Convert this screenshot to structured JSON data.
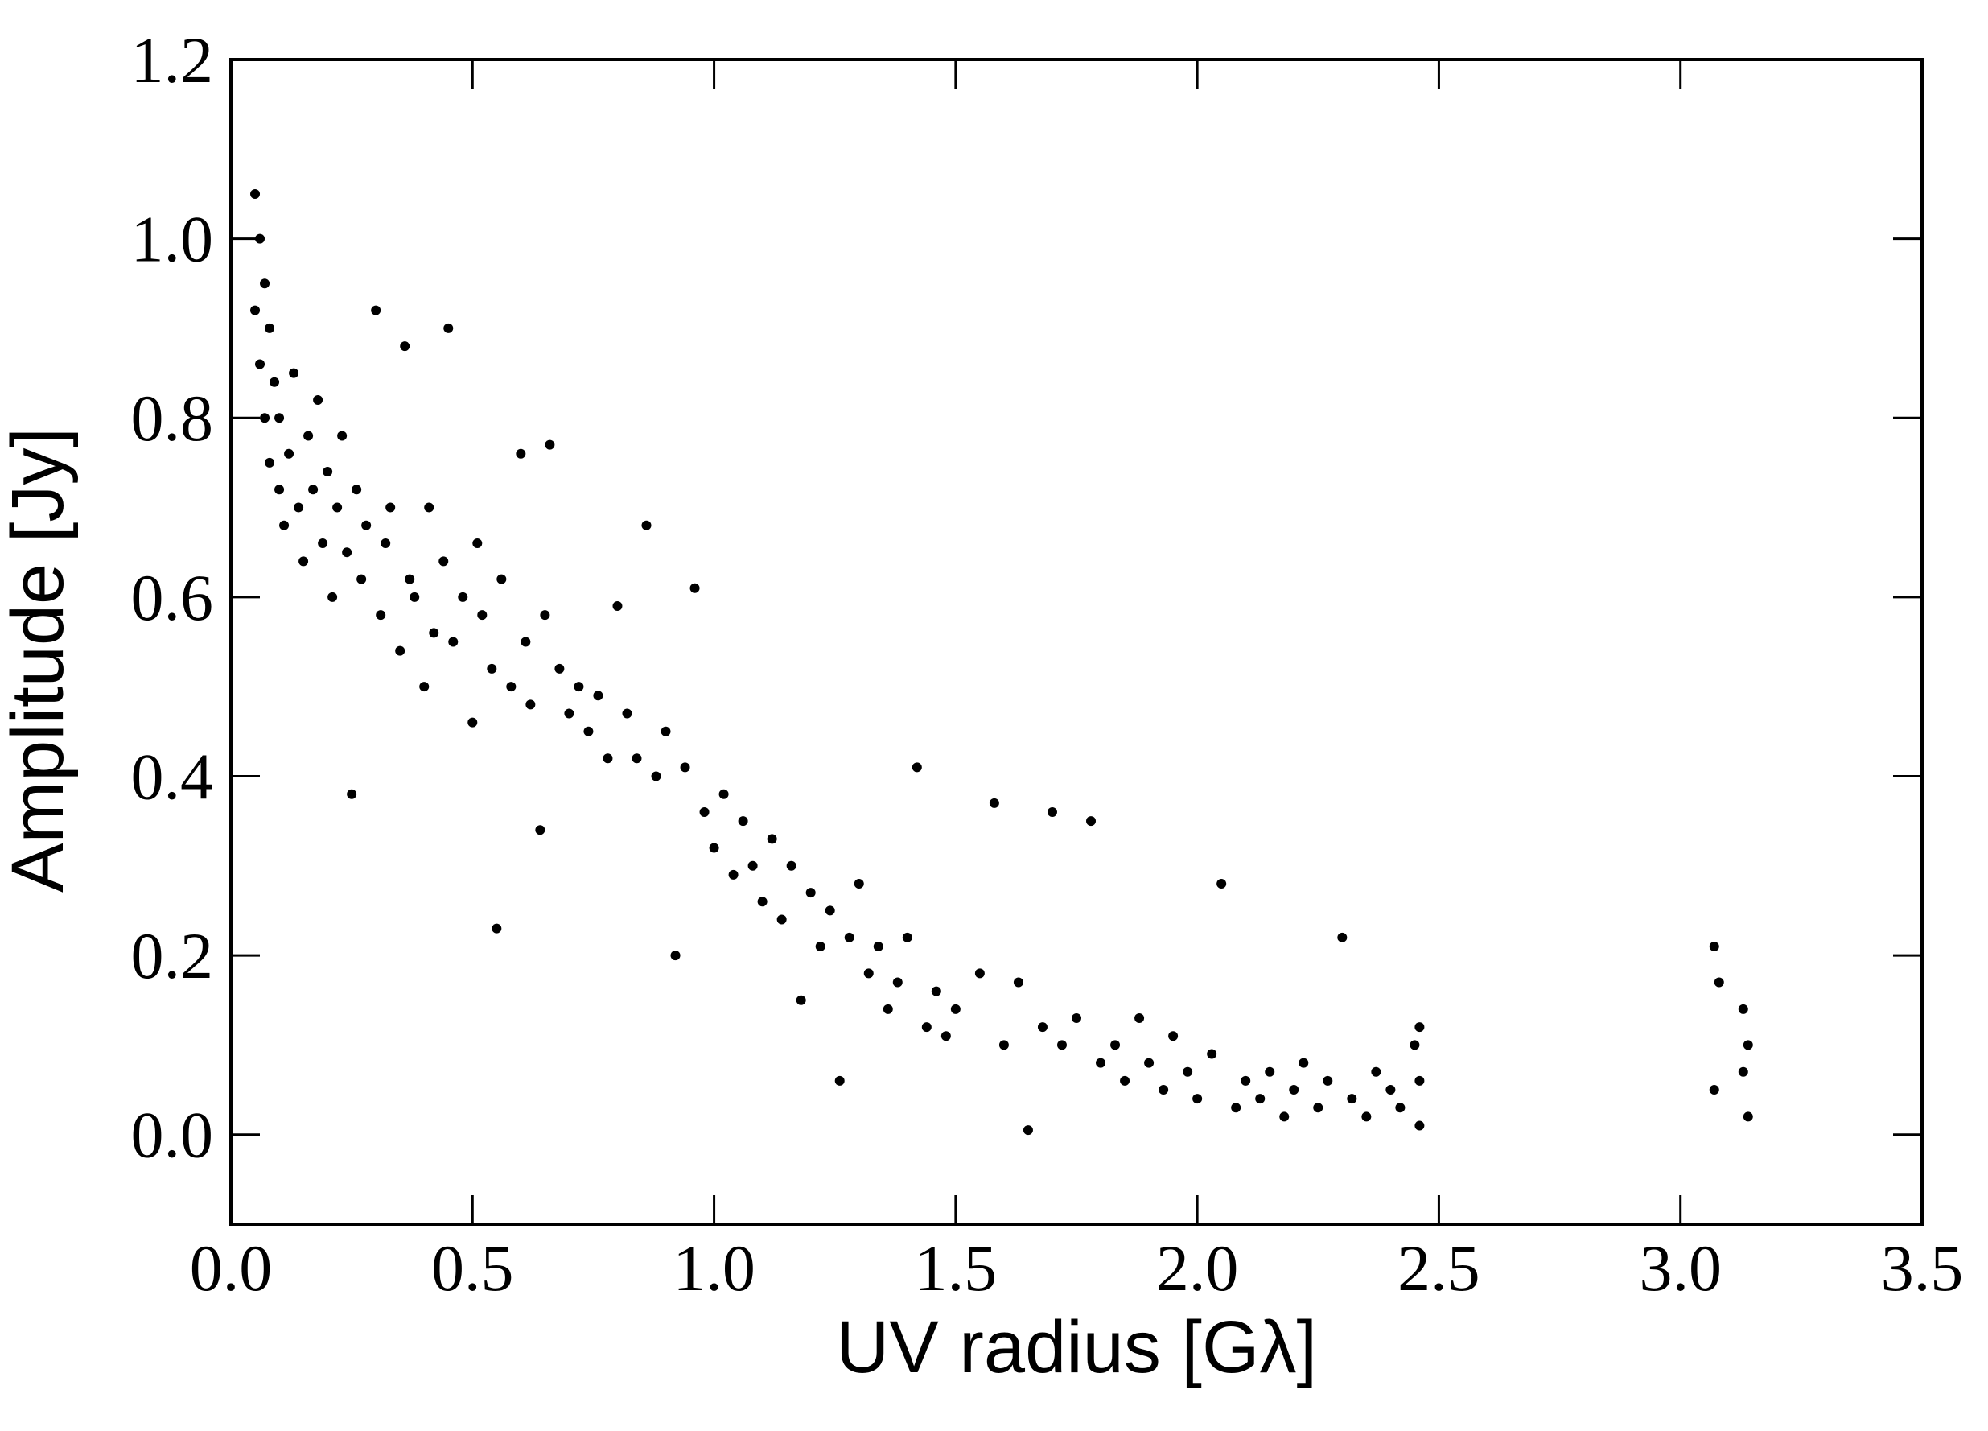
{
  "chart_data": {
    "type": "scatter",
    "xlabel": "UV radius [Gλ]",
    "ylabel": "Amplitude [Jy]",
    "xlim": [
      0,
      3.5
    ],
    "ylim": [
      -0.1,
      1.2
    ],
    "xticks": [
      {
        "value": 0,
        "label": "0.0"
      },
      0.5,
      {
        "value": 1,
        "label": "1.0"
      },
      1.5,
      {
        "value": 2,
        "label": "2.0"
      },
      2.5,
      {
        "value": 3,
        "label": "3.0"
      },
      3.5
    ],
    "yticks": [
      {
        "value": 0,
        "label": "0.0"
      },
      0.2,
      0.4,
      0.6,
      0.8,
      {
        "value": 1,
        "label": "1.0"
      },
      1.2
    ],
    "color": "#000000",
    "x": [
      0.05,
      0.05,
      0.06,
      0.06,
      0.07,
      0.07,
      0.08,
      0.08,
      0.09,
      0.1,
      0.1,
      0.11,
      0.12,
      0.13,
      0.14,
      0.15,
      0.16,
      0.17,
      0.18,
      0.19,
      0.2,
      0.21,
      0.22,
      0.23,
      0.24,
      0.25,
      0.26,
      0.27,
      0.28,
      0.3,
      0.31,
      0.32,
      0.33,
      0.35,
      0.36,
      0.37,
      0.38,
      0.4,
      0.41,
      0.42,
      0.44,
      0.45,
      0.46,
      0.48,
      0.5,
      0.51,
      0.52,
      0.54,
      0.55,
      0.56,
      0.58,
      0.6,
      0.61,
      0.62,
      0.64,
      0.65,
      0.66,
      0.68,
      0.7,
      0.72,
      0.74,
      0.76,
      0.78,
      0.8,
      0.82,
      0.84,
      0.86,
      0.88,
      0.9,
      0.92,
      0.94,
      0.96,
      0.98,
      1.0,
      1.02,
      1.04,
      1.06,
      1.08,
      1.1,
      1.12,
      1.14,
      1.16,
      1.18,
      1.2,
      1.22,
      1.24,
      1.26,
      1.28,
      1.3,
      1.32,
      1.34,
      1.36,
      1.38,
      1.4,
      1.42,
      1.44,
      1.46,
      1.48,
      1.5,
      1.55,
      1.58,
      1.6,
      1.63,
      1.65,
      1.68,
      1.7,
      1.72,
      1.75,
      1.78,
      1.8,
      1.83,
      1.85,
      1.88,
      1.9,
      1.93,
      1.95,
      1.98,
      2.0,
      2.03,
      2.05,
      2.08,
      2.1,
      2.13,
      2.15,
      2.18,
      2.2,
      2.22,
      2.25,
      2.27,
      2.3,
      2.32,
      2.35,
      2.37,
      2.4,
      2.42,
      2.45,
      2.46,
      2.46,
      2.46,
      3.07,
      3.07,
      3.08,
      3.13,
      3.13,
      3.14,
      3.14
    ],
    "values": [
      1.05,
      0.92,
      1.0,
      0.86,
      0.95,
      0.8,
      0.9,
      0.75,
      0.84,
      0.72,
      0.8,
      0.68,
      0.76,
      0.85,
      0.7,
      0.64,
      0.78,
      0.72,
      0.82,
      0.66,
      0.74,
      0.6,
      0.7,
      0.78,
      0.65,
      0.38,
      0.72,
      0.62,
      0.68,
      0.92,
      0.58,
      0.66,
      0.7,
      0.54,
      0.88,
      0.62,
      0.6,
      0.5,
      0.7,
      0.56,
      0.64,
      0.9,
      0.55,
      0.6,
      0.46,
      0.66,
      0.58,
      0.52,
      0.23,
      0.62,
      0.5,
      0.76,
      0.55,
      0.48,
      0.34,
      0.58,
      0.77,
      0.52,
      0.47,
      0.5,
      0.45,
      0.49,
      0.42,
      0.59,
      0.47,
      0.42,
      0.68,
      0.4,
      0.45,
      0.2,
      0.41,
      0.61,
      0.36,
      0.32,
      0.38,
      0.29,
      0.35,
      0.3,
      0.26,
      0.33,
      0.24,
      0.3,
      0.15,
      0.27,
      0.21,
      0.25,
      0.06,
      0.22,
      0.28,
      0.18,
      0.21,
      0.14,
      0.17,
      0.22,
      0.41,
      0.12,
      0.16,
      0.11,
      0.14,
      0.18,
      0.37,
      0.1,
      0.17,
      0.005,
      0.12,
      0.36,
      0.1,
      0.13,
      0.35,
      0.08,
      0.1,
      0.06,
      0.13,
      0.08,
      0.05,
      0.11,
      0.07,
      0.04,
      0.09,
      0.28,
      0.03,
      0.06,
      0.04,
      0.07,
      0.02,
      0.05,
      0.08,
      0.03,
      0.06,
      0.22,
      0.04,
      0.02,
      0.07,
      0.05,
      0.03,
      0.1,
      0.06,
      0.01,
      0.12,
      0.21,
      0.05,
      0.17,
      0.14,
      0.07,
      0.02,
      0.1
    ]
  }
}
